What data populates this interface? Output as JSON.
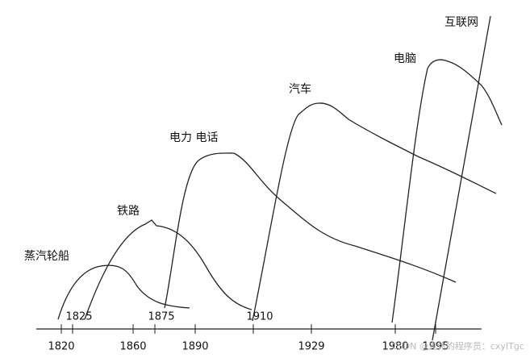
{
  "labels": [
    "蒸汽轮船",
    "铁路",
    "电力 电话",
    "汽车",
    "电脑",
    "互联网"
  ],
  "lower_years": [
    "1820",
    "1860",
    "1890",
    "1929",
    "1980",
    "1995"
  ],
  "upper_years": [
    "1825",
    "1875",
    "1910"
  ],
  "watermark": "CSDN @退休的程序员：cxyITgc"
}
